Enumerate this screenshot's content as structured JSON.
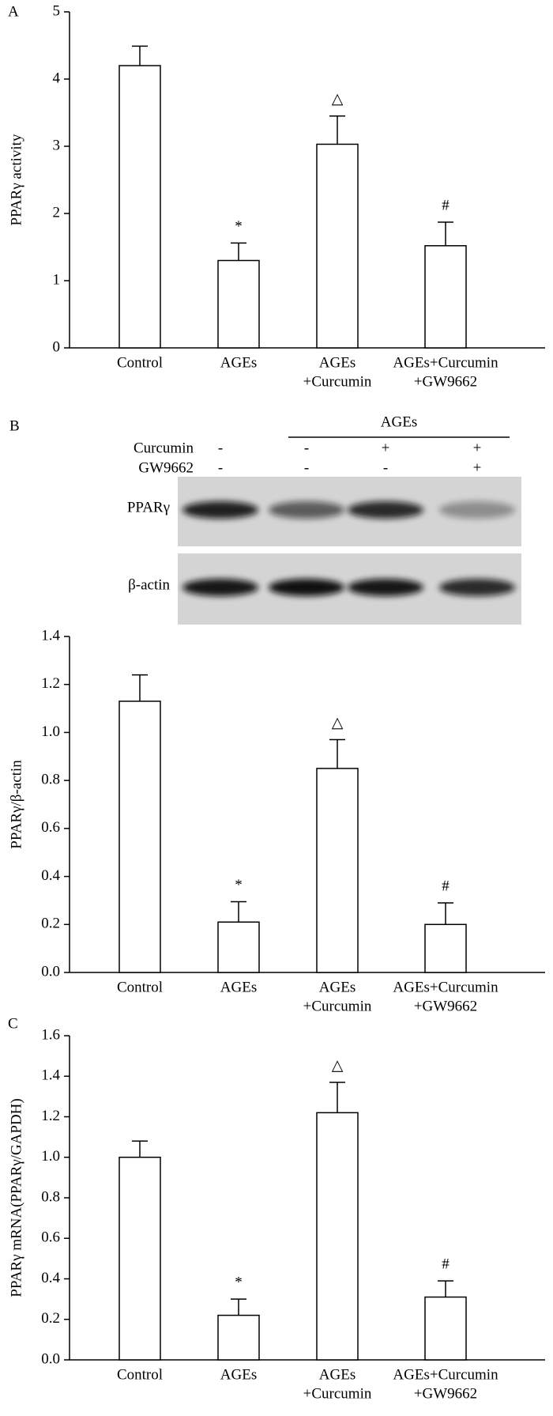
{
  "chart_data": [
    {
      "type": "bar",
      "panel": "A",
      "ylabel": "PPARγ activity",
      "categories": [
        [
          "Control"
        ],
        [
          "AGEs"
        ],
        [
          "AGEs",
          "+Curcumin"
        ],
        [
          "AGEs+Curcumin",
          "+GW9662"
        ]
      ],
      "values": [
        4.2,
        1.3,
        3.03,
        1.52
      ],
      "errors": [
        0.29,
        0.26,
        0.42,
        0.35
      ],
      "annotations": [
        null,
        "*",
        "△",
        "#"
      ],
      "ylim": [
        0,
        5
      ],
      "yticks": [
        0,
        1,
        2,
        3,
        4,
        5
      ],
      "color": "#ffffff"
    },
    {
      "type": "bar",
      "ylabel": "PPARγ/β-actin",
      "categories": [
        [
          "Control"
        ],
        [
          "AGEs"
        ],
        [
          "AGEs",
          "+Curcumin"
        ],
        [
          "AGEs+Curcumin",
          "+GW9662"
        ]
      ],
      "values": [
        1.13,
        0.21,
        0.85,
        0.2
      ],
      "errors": [
        0.11,
        0.085,
        0.12,
        0.09
      ],
      "annotations": [
        null,
        "*",
        "△",
        "#"
      ],
      "ylim": [
        0,
        1.4
      ],
      "yticks": [
        {
          "value": 0,
          "label": "0.0"
        },
        0.2,
        0.4,
        0.6,
        0.8,
        {
          "value": 1,
          "label": "1.0"
        },
        1.2,
        1.4
      ],
      "color": "#ffffff"
    },
    {
      "type": "bar",
      "panel": "C",
      "ylabel": "PPARγ mRNA(PPARγ/GAPDH)",
      "categories": [
        [
          "Control"
        ],
        [
          "AGEs"
        ],
        [
          "AGEs",
          "+Curcumin"
        ],
        [
          "AGEs+Curcumin",
          "+GW9662"
        ]
      ],
      "values": [
        1.0,
        0.22,
        1.22,
        0.31
      ],
      "errors": [
        0.08,
        0.08,
        0.15,
        0.08
      ],
      "annotations": [
        null,
        "*",
        "△",
        "#"
      ],
      "ylim": [
        0,
        1.6
      ],
      "yticks": [
        {
          "value": 0,
          "label": "0.0"
        },
        0.2,
        0.4,
        0.6,
        0.8,
        {
          "value": 1,
          "label": "1.0"
        },
        1.2,
        1.4,
        1.6
      ],
      "color": "#ffffff"
    }
  ],
  "blot": {
    "panel": "B",
    "group": "AGEs",
    "rows": [
      {
        "label": "Curcumin",
        "signs": [
          "-",
          "-",
          "+",
          "+"
        ]
      },
      {
        "label": "GW9662",
        "signs": [
          "-",
          "-",
          "-",
          "+"
        ]
      }
    ],
    "bands": [
      "PPARγ",
      "β-actin"
    ]
  }
}
